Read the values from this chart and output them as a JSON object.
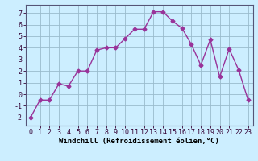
{
  "x": [
    0,
    1,
    2,
    3,
    4,
    5,
    6,
    7,
    8,
    9,
    10,
    11,
    12,
    13,
    14,
    15,
    16,
    17,
    18,
    19,
    20,
    21,
    22,
    23
  ],
  "y": [
    -2.0,
    -0.5,
    -0.5,
    0.9,
    0.7,
    2.0,
    2.0,
    3.8,
    4.0,
    4.0,
    4.8,
    5.6,
    5.6,
    7.1,
    7.1,
    6.3,
    5.7,
    4.3,
    2.5,
    4.7,
    1.5,
    3.9,
    2.1,
    -0.5
  ],
  "line_color": "#993399",
  "marker": "D",
  "markersize": 2.5,
  "linewidth": 1.0,
  "bg_color": "#cceeff",
  "grid_color": "#99bbcc",
  "xlabel": "Windchill (Refroidissement éolien,°C)",
  "ylabel_ticks": [
    -2,
    -1,
    0,
    1,
    2,
    3,
    4,
    5,
    6,
    7
  ],
  "xlim": [
    -0.5,
    23.5
  ],
  "ylim": [
    -2.7,
    7.7
  ],
  "xlabel_fontsize": 6.5,
  "tick_fontsize": 6.0
}
